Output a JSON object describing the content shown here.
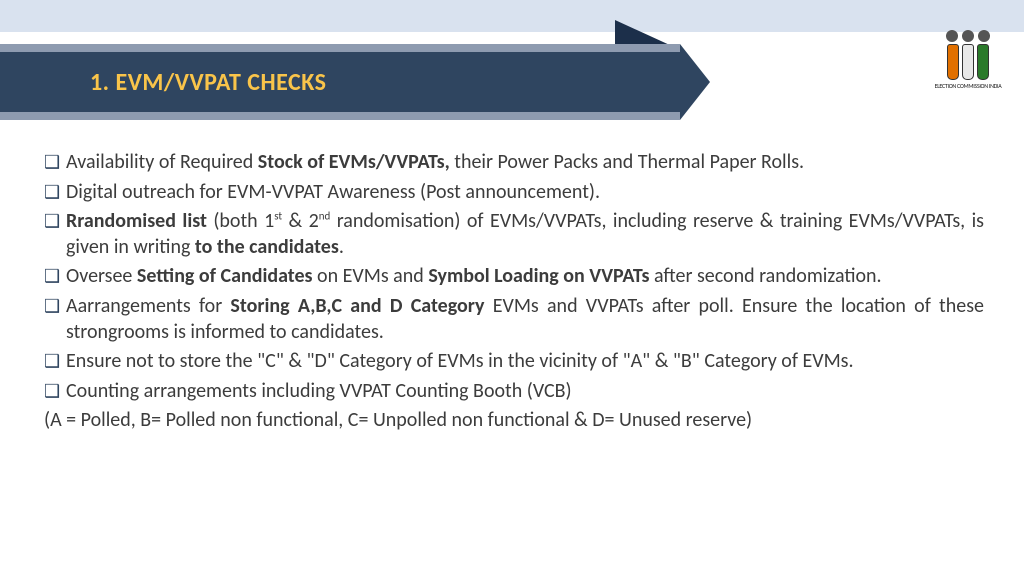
{
  "colors": {
    "topBand": "#d9e2ef",
    "titleBg": "#2f4560",
    "titleStrip": "#8e9bb0",
    "titleText": "#f9c44a",
    "bodyText": "#3c3c3c",
    "bulletColor": "#2f4560",
    "logoBars": [
      "#e17000",
      "#e8e8e8",
      "#2b7a2b"
    ]
  },
  "title": "1. EVM/VVPAT CHECKS",
  "logo": {
    "caption": "ELECTION COMMISSION INDIA"
  },
  "bullets": [
    {
      "glyph": "❑",
      "runs": [
        {
          "t": "Availability of Required ",
          "b": false
        },
        {
          "t": "Stock of EVMs/VVPATs,",
          "b": true
        },
        {
          "t": " their Power Packs and Thermal Paper Rolls.",
          "b": false
        }
      ]
    },
    {
      "glyph": "❑",
      "runs": [
        {
          "t": "Digital outreach for EVM-VVPAT Awareness (Post announcement).",
          "b": false
        }
      ]
    },
    {
      "glyph": "❑",
      "runs": [
        {
          "t": "Rrandomised list",
          "b": true
        },
        {
          "t": " (both 1",
          "b": false
        },
        {
          "t": "st",
          "b": false,
          "sup": true
        },
        {
          "t": " & 2",
          "b": false
        },
        {
          "t": "nd",
          "b": false,
          "sup": true
        },
        {
          "t": " randomisation) of EVMs/VVPATs, including reserve & training EVMs/VVPATs, is given in writing ",
          "b": false
        },
        {
          "t": "to the candidates",
          "b": true
        },
        {
          "t": ".",
          "b": false
        }
      ]
    },
    {
      "glyph": "❑",
      "runs": [
        {
          "t": "Oversee ",
          "b": false
        },
        {
          "t": "Setting of Candidates",
          "b": true
        },
        {
          "t": " on EVMs and ",
          "b": false
        },
        {
          "t": "Symbol Loading on VVPATs",
          "b": true
        },
        {
          "t": " after second randomization.",
          "b": false
        }
      ]
    },
    {
      "glyph": "❑",
      "runs": [
        {
          "t": "Aarrangements for ",
          "b": false
        },
        {
          "t": "Storing A,B,C and D Category",
          "b": true
        },
        {
          "t": " EVMs and VVPATs after poll. Ensure the location of these strongrooms is informed to candidates.",
          "b": false
        }
      ]
    },
    {
      "glyph": "❑",
      "runs": [
        {
          "t": " Ensure not to store the \"C\" & \"D\" Category of EVMs in the vicinity of \"A\" & \"B\" Category of EVMs.",
          "b": false
        }
      ]
    },
    {
      "glyph": "❑",
      "runs": [
        {
          "t": "Counting arrangements including VVPAT Counting Booth (VCB)",
          "b": false
        }
      ]
    }
  ],
  "footnote": "(A = Polled, B= Polled non functional, C= Unpolled non functional & D= Unused reserve)"
}
